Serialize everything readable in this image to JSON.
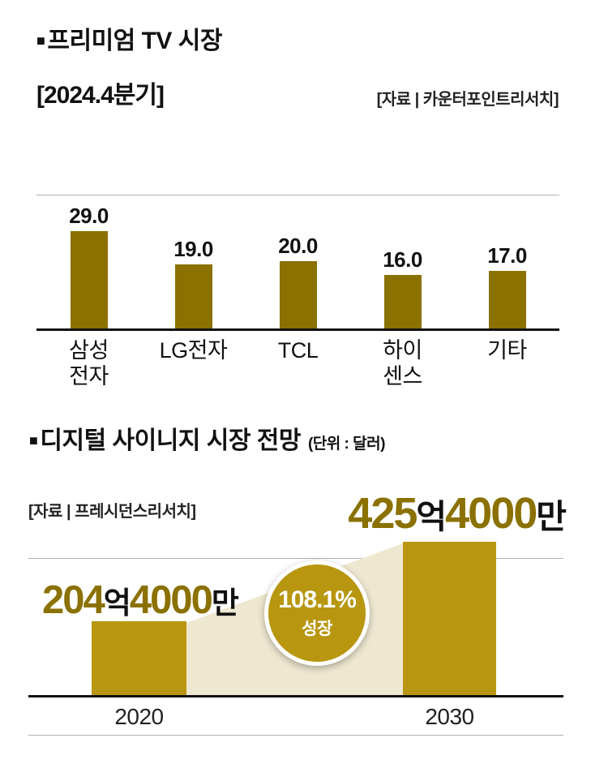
{
  "colors": {
    "bar-dark": "#8a7100",
    "bar-gold": "#b8960f",
    "trapezoid": "#efe8d1",
    "grid": "#b0b0b0",
    "axis": "#111111"
  },
  "chart1": {
    "bullet": "■",
    "title": "프리미엄 TV 시장",
    "period": "[2024.4분기]",
    "source": "[자료 | 카운터포인트리서치]"
  },
  "chart2": {
    "bullet": "■",
    "title": "디지털 사이니지 시장 전망",
    "unit_note": "(단위 : 달러)",
    "source": "[자료 | 프레시던스리서치]",
    "growth_badge": {
      "percent": "108.1%",
      "label": "성장"
    },
    "labels": {
      "y2020": {
        "num1": "204",
        "suffix1": "억",
        "num2": "4000",
        "suffix2": "만"
      },
      "y2030": {
        "num1": "425",
        "suffix1": "억",
        "num2": "4000",
        "suffix2": "만"
      }
    }
  },
  "chart_data": [
    {
      "type": "bar",
      "title": "프리미엄 TV 시장 [2024.4분기]",
      "source": "카운터포인트리서치",
      "categories": [
        "삼성전자",
        "LG전자",
        "TCL",
        "하이센스",
        "기타"
      ],
      "display_labels": [
        "삼성\n전자",
        "LG전자",
        "TCL",
        "하이\n센스",
        "기타"
      ],
      "values": [
        29.0,
        19.0,
        20.0,
        16.0,
        17.0
      ],
      "value_labels": [
        "29.0",
        "19.0",
        "20.0",
        "16.0",
        "17.0"
      ],
      "ylim": [
        0,
        40
      ],
      "grid": true,
      "legend": false
    },
    {
      "type": "bar",
      "title": "디지털 사이니지 시장 전망",
      "unit": "달러",
      "source": "프레시던스리서치",
      "categories": [
        "2020",
        "2030"
      ],
      "values": [
        20440000000,
        42540000000
      ],
      "values_eok": [
        204.4,
        425.4
      ],
      "value_labels": [
        "204억4000만",
        "425억4000만"
      ],
      "annotation": "108.1% 성장",
      "grid": true,
      "legend": false
    }
  ]
}
